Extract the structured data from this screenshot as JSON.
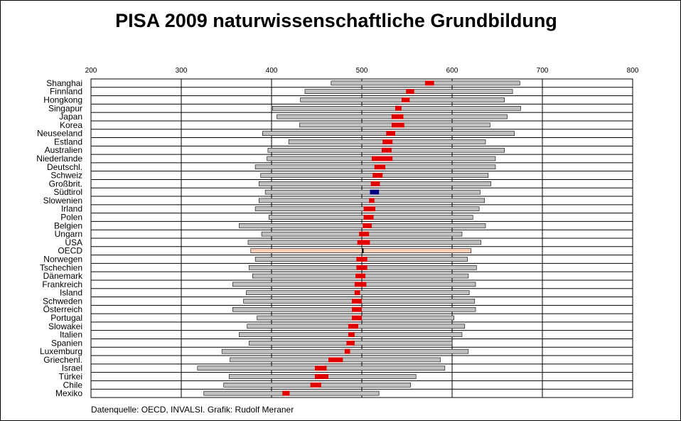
{
  "chart_data": {
    "type": "range-bar",
    "title": "PISA 2009 naturwissenschaftliche Grundbildung",
    "source_note": "Datenquelle: OECD, INVALSI. Grafik: Rudolf Meraner",
    "xlim": [
      200,
      800
    ],
    "xticks": [
      "200",
      "300",
      "400",
      "500",
      "600",
      "700",
      "800"
    ],
    "grid": "vertical",
    "colors": {
      "range_bar": "#c0c0c0",
      "range_bar_oecd": "#ffd0b8",
      "mean_marker": "#e00000",
      "mean_marker_suedtirol": "#000080",
      "mean_marker_oecd": "#000000",
      "outline": "#000000"
    },
    "countries": [
      {
        "name": "Shanghai",
        "low": 466,
        "high": 675,
        "mean_low": 570,
        "mean_high": 580
      },
      {
        "name": "Finnland",
        "low": 437,
        "high": 667,
        "mean_low": 549,
        "mean_high": 558
      },
      {
        "name": "Hongkong",
        "low": 432,
        "high": 658,
        "mean_low": 544,
        "mean_high": 553
      },
      {
        "name": "Singapur",
        "low": 401,
        "high": 676,
        "mean_low": 537,
        "mean_high": 544
      },
      {
        "name": "Japan",
        "low": 406,
        "high": 661,
        "mean_low": 533,
        "mean_high": 546
      },
      {
        "name": "Korea",
        "low": 431,
        "high": 642,
        "mean_low": 533,
        "mean_high": 547
      },
      {
        "name": "Neuseeland",
        "low": 390,
        "high": 669,
        "mean_low": 527,
        "mean_high": 537
      },
      {
        "name": "Estland",
        "low": 419,
        "high": 637,
        "mean_low": 523,
        "mean_high": 534
      },
      {
        "name": "Australien",
        "low": 396,
        "high": 658,
        "mean_low": 522,
        "mean_high": 533
      },
      {
        "name": "Niederlande",
        "low": 395,
        "high": 648,
        "mean_low": 511,
        "mean_high": 534
      },
      {
        "name": "Deutschl.",
        "low": 382,
        "high": 648,
        "mean_low": 514,
        "mean_high": 526
      },
      {
        "name": "Schweiz",
        "low": 388,
        "high": 640,
        "mean_low": 512,
        "mean_high": 523
      },
      {
        "name": "Großbrit.",
        "low": 386,
        "high": 643,
        "mean_low": 510,
        "mean_high": 520
      },
      {
        "name": "Südtirol",
        "low": 393,
        "high": 631,
        "mean_low": 509,
        "mean_high": 519
      },
      {
        "name": "Slowenien",
        "low": 386,
        "high": 636,
        "mean_low": 508,
        "mean_high": 514
      },
      {
        "name": "Irland",
        "low": 382,
        "high": 630,
        "mean_low": 502,
        "mean_high": 515
      },
      {
        "name": "Polen",
        "low": 397,
        "high": 623,
        "mean_low": 502,
        "mean_high": 513
      },
      {
        "name": "Belgien",
        "low": 364,
        "high": 637,
        "mean_low": 501,
        "mean_high": 511
      },
      {
        "name": "Ungarn",
        "low": 389,
        "high": 611,
        "mean_low": 497,
        "mean_high": 508
      },
      {
        "name": "USA",
        "low": 374,
        "high": 632,
        "mean_low": 495,
        "mean_high": 509
      },
      {
        "name": "OECD",
        "low": 377,
        "high": 621,
        "mean_low": 500,
        "mean_high": 502
      },
      {
        "name": "Norwegen",
        "low": 382,
        "high": 617,
        "mean_low": 494,
        "mean_high": 506
      },
      {
        "name": "Tschechien",
        "low": 375,
        "high": 627,
        "mean_low": 494,
        "mean_high": 506
      },
      {
        "name": "Dänemark",
        "low": 379,
        "high": 618,
        "mean_low": 493,
        "mean_high": 504
      },
      {
        "name": "Frankreich",
        "low": 357,
        "high": 626,
        "mean_low": 492,
        "mean_high": 505
      },
      {
        "name": "Island",
        "low": 372,
        "high": 619,
        "mean_low": 492,
        "mean_high": 498
      },
      {
        "name": "Schweden",
        "low": 369,
        "high": 625,
        "mean_low": 489,
        "mean_high": 500
      },
      {
        "name": "Österreich",
        "low": 357,
        "high": 626,
        "mean_low": 489,
        "mean_high": 500
      },
      {
        "name": "Portugal",
        "low": 384,
        "high": 602,
        "mean_low": 489,
        "mean_high": 500
      },
      {
        "name": "Slowakei",
        "low": 373,
        "high": 614,
        "mean_low": 485,
        "mean_high": 496
      },
      {
        "name": "Italien",
        "low": 364,
        "high": 611,
        "mean_low": 485,
        "mean_high": 492
      },
      {
        "name": "Spanien",
        "low": 375,
        "high": 600,
        "mean_low": 483,
        "mean_high": 492
      },
      {
        "name": "Luxemburg",
        "low": 345,
        "high": 618,
        "mean_low": 481,
        "mean_high": 487
      },
      {
        "name": "Griechenl.",
        "low": 354,
        "high": 587,
        "mean_low": 463,
        "mean_high": 479
      },
      {
        "name": "Israel",
        "low": 318,
        "high": 592,
        "mean_low": 448,
        "mean_high": 461
      },
      {
        "name": "Türkei",
        "low": 353,
        "high": 560,
        "mean_low": 448,
        "mean_high": 463
      },
      {
        "name": "Chile",
        "low": 347,
        "high": 554,
        "mean_low": 443,
        "mean_high": 455
      },
      {
        "name": "Mexiko",
        "low": 325,
        "high": 519,
        "mean_low": 412,
        "mean_high": 420
      }
    ]
  }
}
